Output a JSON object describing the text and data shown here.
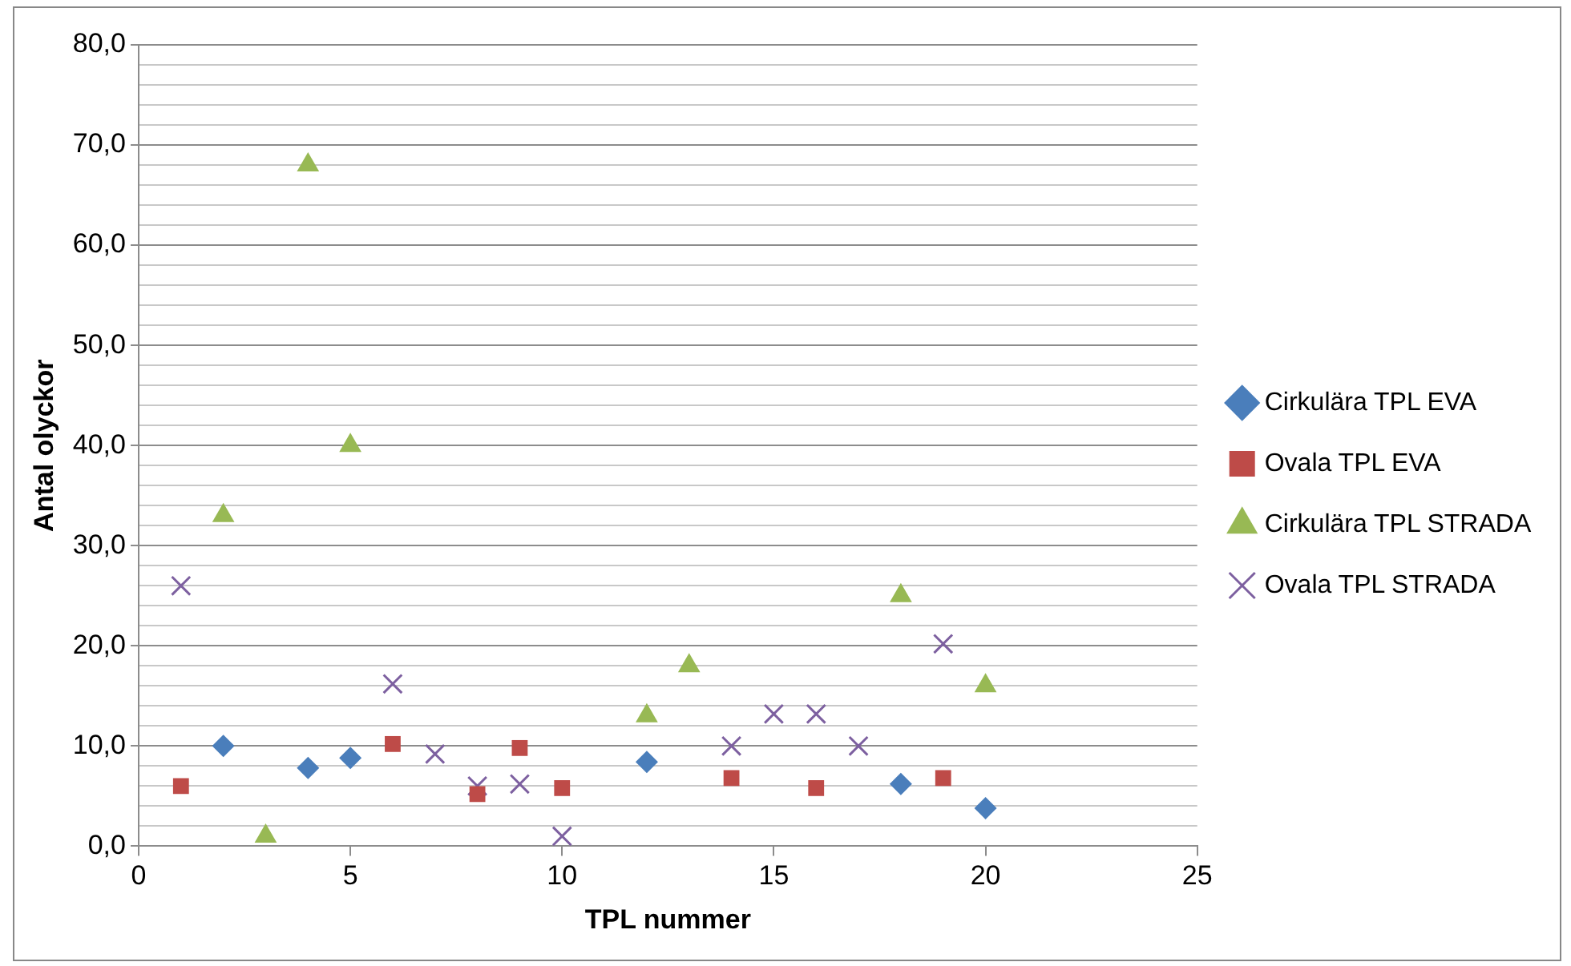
{
  "chart_data": {
    "type": "scatter",
    "xlabel": "TPL nummer",
    "ylabel": "Antal olyckor",
    "xlim": [
      0,
      25
    ],
    "xticks": [
      0,
      5,
      10,
      15,
      20,
      25
    ],
    "ylim": [
      0,
      80
    ],
    "yticks": [
      {
        "value": 0,
        "label": "0,0"
      },
      {
        "value": 2,
        "label": null
      },
      {
        "value": 4,
        "label": null
      },
      {
        "value": 6,
        "label": null
      },
      {
        "value": 8,
        "label": null
      },
      {
        "value": 10,
        "label": "10,0"
      },
      {
        "value": 12,
        "label": null
      },
      {
        "value": 14,
        "label": null
      },
      {
        "value": 16,
        "label": null
      },
      {
        "value": 18,
        "label": null
      },
      {
        "value": 20,
        "label": "20,0"
      },
      {
        "value": 22,
        "label": null
      },
      {
        "value": 24,
        "label": null
      },
      {
        "value": 26,
        "label": null
      },
      {
        "value": 28,
        "label": null
      },
      {
        "value": 30,
        "label": "30,0"
      },
      {
        "value": 32,
        "label": null
      },
      {
        "value": 34,
        "label": null
      },
      {
        "value": 36,
        "label": null
      },
      {
        "value": 38,
        "label": null
      },
      {
        "value": 40,
        "label": "40,0"
      },
      {
        "value": 42,
        "label": null
      },
      {
        "value": 44,
        "label": null
      },
      {
        "value": 46,
        "label": null
      },
      {
        "value": 48,
        "label": null
      },
      {
        "value": 50,
        "label": "50,0"
      },
      {
        "value": 52,
        "label": null
      },
      {
        "value": 54,
        "label": null
      },
      {
        "value": 56,
        "label": null
      },
      {
        "value": 58,
        "label": null
      },
      {
        "value": 60,
        "label": "60,0"
      },
      {
        "value": 62,
        "label": null
      },
      {
        "value": 64,
        "label": null
      },
      {
        "value": 66,
        "label": null
      },
      {
        "value": 68,
        "label": null
      },
      {
        "value": 70,
        "label": "70,0"
      },
      {
        "value": 72,
        "label": null
      },
      {
        "value": 74,
        "label": null
      },
      {
        "value": 76,
        "label": null
      },
      {
        "value": 78,
        "label": null
      },
      {
        "value": 80,
        "label": "80,0"
      }
    ],
    "grid": "y",
    "legend": "right",
    "series": [
      {
        "name": "Cirkulära TPL EVA",
        "color": "#4a7ebb",
        "marker": "diamond",
        "x": [
          2,
          4,
          5,
          12,
          18,
          20
        ],
        "values": [
          10,
          7.8,
          8.8,
          8.4,
          6.2,
          3.8
        ]
      },
      {
        "name": "Ovala TPL EVA",
        "color": "#be4b48",
        "marker": "square",
        "x": [
          1,
          6,
          8,
          9,
          10,
          14,
          16,
          19
        ],
        "values": [
          6,
          10.2,
          5.2,
          9.8,
          5.8,
          6.8,
          5.8,
          6.8
        ]
      },
      {
        "name": "Cirkulära TPL STRADA",
        "color": "#98b954",
        "marker": "triangle",
        "x": [
          2,
          3,
          4,
          5,
          12,
          13,
          18,
          20
        ],
        "values": [
          33,
          1,
          68,
          40,
          13,
          18,
          25,
          16
        ]
      },
      {
        "name": "Ovala TPL STRADA",
        "color": "#7d60a0",
        "marker": "cross",
        "x": [
          1,
          6,
          7,
          8,
          9,
          10,
          14,
          15,
          16,
          17,
          19
        ],
        "values": [
          26,
          16.2,
          9.2,
          6,
          6.2,
          1,
          10,
          13.2,
          13.2,
          10,
          20.2
        ]
      }
    ]
  }
}
